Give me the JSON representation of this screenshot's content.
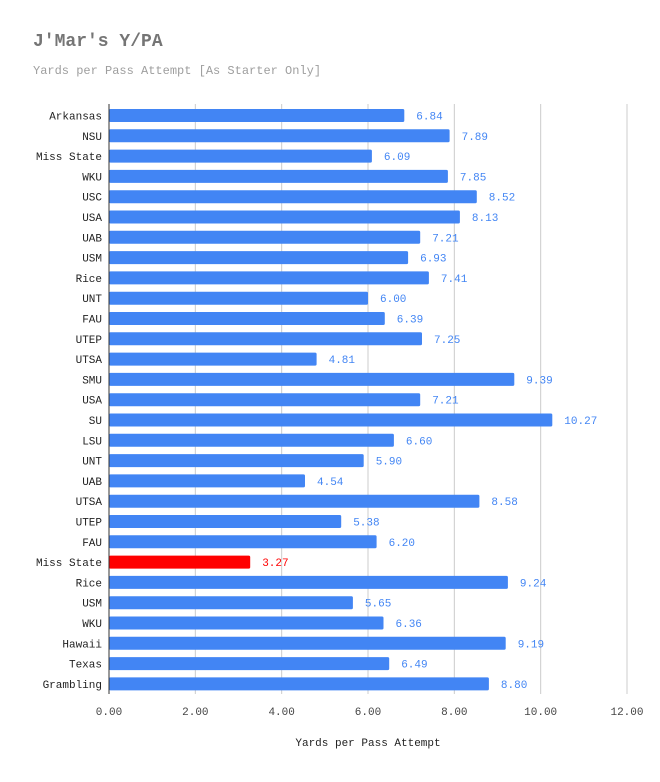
{
  "chart_data": {
    "type": "bar",
    "orientation": "horizontal",
    "title": "J'Mar's Y/PA",
    "subtitle": "Yards per Pass Attempt [As Starter Only]",
    "xlabel": "Yards per Pass Attempt",
    "ylabel": "",
    "xlim": [
      0,
      12
    ],
    "ticks": [
      "0.00",
      "2.00",
      "4.00",
      "6.00",
      "8.00",
      "10.00",
      "12.00"
    ],
    "grid": true,
    "legend": "none",
    "categories": [
      "Arkansas",
      "NSU",
      "Miss State",
      "WKU",
      "USC",
      "USA",
      "UAB",
      "USM",
      "Rice",
      "UNT",
      "FAU",
      "UTEP",
      "UTSA",
      "SMU",
      "USA",
      "SU",
      "LSU",
      "UNT",
      "UAB",
      "UTSA",
      "UTEP",
      "FAU",
      "Miss State",
      "Rice",
      "USM",
      "WKU",
      "Hawaii",
      "Texas",
      "Grambling"
    ],
    "values": [
      6.84,
      7.89,
      6.09,
      7.85,
      8.52,
      8.13,
      7.21,
      6.93,
      7.41,
      6.0,
      6.39,
      7.25,
      4.81,
      9.39,
      7.21,
      10.27,
      6.6,
      5.9,
      4.54,
      8.58,
      5.38,
      6.2,
      3.27,
      9.24,
      5.65,
      6.36,
      9.19,
      6.49,
      8.8
    ],
    "value_labels": [
      "6.84",
      "7.89",
      "6.09",
      "7.85",
      "8.52",
      "8.13",
      "7.21",
      "6.93",
      "7.41",
      "6.00",
      "6.39",
      "7.25",
      "4.81",
      "9.39",
      "7.21",
      "10.27",
      "6.60",
      "5.90",
      "4.54",
      "8.58",
      "5.38",
      "6.20",
      "3.27",
      "9.24",
      "5.65",
      "6.36",
      "9.19",
      "6.49",
      "8.80"
    ],
    "highlight_index": 22,
    "colors": {
      "bar": "#4285f4",
      "highlight": "#ff0000",
      "label": "#4285f4",
      "highlight_label": "#ff0000",
      "grid": "#cccccc",
      "axis": "#333333",
      "category_text": "#222222",
      "tick_text": "#444444"
    }
  }
}
